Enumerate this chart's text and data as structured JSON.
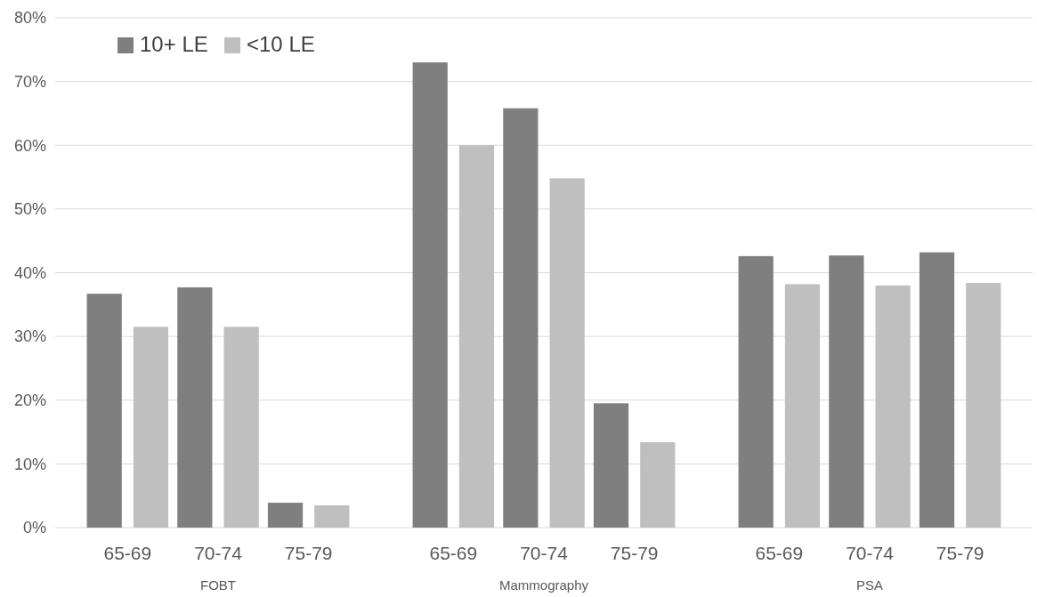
{
  "chart_data": [
    {
      "type": "bar",
      "xlabel": "FOBT",
      "categories": [
        "65-69",
        "70-74",
        "75-79"
      ],
      "series": [
        {
          "name": "10+ LE",
          "color": "#7f7f7f",
          "values": [
            36.7,
            37.7,
            3.9
          ]
        },
        {
          "name": "<10 LE",
          "color": "#bfbfbf",
          "values": [
            31.5,
            31.5,
            3.5
          ]
        }
      ],
      "ylim": [
        0,
        80
      ],
      "yticks": [
        {
          "value": 0,
          "label": "0%"
        },
        {
          "value": 10,
          "label": "10%"
        },
        {
          "value": 20,
          "label": "20%"
        },
        {
          "value": 30,
          "label": "30%"
        },
        {
          "value": 40,
          "label": "40%"
        },
        {
          "value": 50,
          "label": "50%"
        },
        {
          "value": 60,
          "label": "60%"
        },
        {
          "value": 70,
          "label": "70%"
        },
        {
          "value": 80,
          "label": "80%"
        }
      ],
      "grid": "y",
      "legend": "top left"
    },
    {
      "type": "bar",
      "xlabel": "Mammography",
      "categories": [
        "65-69",
        "70-74",
        "75-79"
      ],
      "series": [
        {
          "color": "#7f7f7f",
          "values": [
            73.0,
            65.8,
            19.5
          ]
        },
        {
          "color": "#bfbfbf",
          "values": [
            60.0,
            54.8,
            13.4
          ]
        }
      ],
      "ylim": [
        0,
        80
      ],
      "yticks": [
        0,
        10,
        20,
        30,
        40,
        50,
        60,
        70,
        80
      ],
      "grid": "y",
      "tick_labels": "x"
    },
    {
      "type": "bar",
      "xlabel": "PSA",
      "categories": [
        "65-69",
        "70-74",
        "75-79"
      ],
      "series": [
        {
          "color": "#7f7f7f",
          "values": [
            42.6,
            42.7,
            43.2
          ]
        },
        {
          "color": "#bfbfbf",
          "values": [
            38.2,
            38.0,
            38.4
          ]
        }
      ],
      "ylim": [
        0,
        80
      ],
      "yticks": [
        0,
        10,
        20,
        30,
        40,
        50,
        60,
        70,
        80
      ],
      "grid": "y",
      "tick_labels": "x"
    }
  ]
}
